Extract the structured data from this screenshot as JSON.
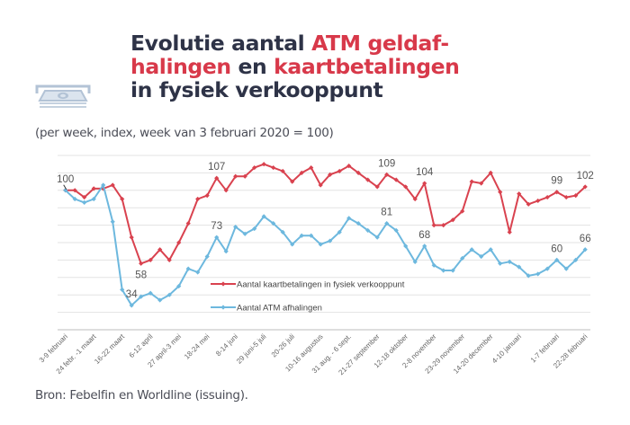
{
  "header": {
    "title_parts": [
      {
        "text": "Evolutie aantal ",
        "accent": false
      },
      {
        "text": "ATM geldaf-",
        "accent": true
      },
      {
        "text": "halingen",
        "accent": true
      },
      {
        "text": " en ",
        "accent": false
      },
      {
        "text": "kaartbetalingen",
        "accent": true
      },
      {
        "text": "in fysiek verkooppunt",
        "accent": false
      }
    ],
    "icon": "atm-banknote-icon",
    "subtitle": "(per week, index, week van 3 februari 2020 = 100)"
  },
  "footer": {
    "source": "Bron: Febelfin en Worldline (issuing)."
  },
  "colors": {
    "title_dark": "#2e3347",
    "title_accent": "#d8394a",
    "card_payments": "#d9424f",
    "atm": "#6db8de",
    "gridline": "#e3e3e3"
  },
  "chart_data": {
    "type": "line",
    "title": "Evolutie aantal ATM geldafhalingen en kaartbetalingen in fysiek verkooppunt",
    "subtitle": "(per week, index, week van 3 februari 2020 = 100)",
    "xlabel": "",
    "ylabel": "",
    "ylim": [
      20,
      120
    ],
    "y_gridlines": [
      30,
      40,
      50,
      60,
      70,
      80,
      90,
      100,
      110,
      120
    ],
    "y_tick_labels_shown": false,
    "grid": true,
    "legend_position": "center-bottom (inside plot)",
    "n_points": 56,
    "x_tick_labels": [
      {
        "index": 0,
        "label": "3-9 februari"
      },
      {
        "index": 3,
        "label": "24 febr. -1 maart"
      },
      {
        "index": 6,
        "label": "16-22 maart"
      },
      {
        "index": 9,
        "label": "6-12 april"
      },
      {
        "index": 12,
        "label": "27 april-3 mei"
      },
      {
        "index": 15,
        "label": "18-24 mei"
      },
      {
        "index": 18,
        "label": "8-14 juni"
      },
      {
        "index": 21,
        "label": "29 juni-5 juli"
      },
      {
        "index": 24,
        "label": "20-26 juli"
      },
      {
        "index": 27,
        "label": "10-16 augustus"
      },
      {
        "index": 30,
        "label": "31 aug. - 6 sept."
      },
      {
        "index": 33,
        "label": "21-27 september"
      },
      {
        "index": 36,
        "label": "12-18 oktober"
      },
      {
        "index": 39,
        "label": "2-8 november"
      },
      {
        "index": 42,
        "label": "23-29 november"
      },
      {
        "index": 45,
        "label": "14-20 december"
      },
      {
        "index": 48,
        "label": "4-10 januari"
      },
      {
        "index": 52,
        "label": "1-7 februari"
      },
      {
        "index": 55,
        "label": "22-28 februari"
      }
    ],
    "series": [
      {
        "name": "Aantal kaartbetalingen in fysiek verkooppunt",
        "color": "#d9424f",
        "values": [
          100,
          100,
          96,
          101,
          101,
          103,
          95,
          73,
          58,
          60,
          66,
          60,
          70,
          81,
          95,
          97,
          107,
          100,
          108,
          108,
          113,
          115,
          113,
          111,
          105,
          110,
          113,
          103,
          109,
          111,
          114,
          110,
          106,
          102,
          109,
          106,
          102,
          95,
          104,
          80,
          80,
          83,
          88,
          105,
          104,
          110,
          99,
          76,
          98,
          92,
          94,
          96,
          99,
          96,
          97,
          102
        ],
        "data_labels": [
          {
            "index": 0,
            "text": "100"
          },
          {
            "index": 16,
            "text": "107"
          },
          {
            "index": 34,
            "text": "109"
          },
          {
            "index": 38,
            "text": "104"
          },
          {
            "index": 52,
            "text": "99"
          },
          {
            "index": 55,
            "text": "102"
          }
        ]
      },
      {
        "name": "Aantal ATM afhalingen",
        "color": "#6db8de",
        "values": [
          100,
          95,
          93,
          95,
          103,
          82,
          43,
          34,
          39,
          41,
          37,
          40,
          45,
          55,
          53,
          62,
          73,
          65,
          79,
          75,
          78,
          85,
          81,
          76,
          69,
          74,
          74,
          69,
          71,
          76,
          84,
          81,
          77,
          73,
          81,
          77,
          68,
          59,
          68,
          57,
          54,
          54,
          61,
          66,
          62,
          66,
          58,
          59,
          56,
          51,
          52,
          55,
          60,
          55,
          60,
          66
        ],
        "data_labels": [
          {
            "index": 7,
            "text": "34"
          },
          {
            "index": 16,
            "text": "73"
          },
          {
            "index": 34,
            "text": "81"
          },
          {
            "index": 38,
            "text": "68"
          },
          {
            "index": 52,
            "text": "60"
          },
          {
            "index": 55,
            "text": "66"
          }
        ]
      }
    ],
    "extra_labels": [
      {
        "series": 0,
        "index": 8,
        "text": "58",
        "position": "below"
      }
    ]
  }
}
